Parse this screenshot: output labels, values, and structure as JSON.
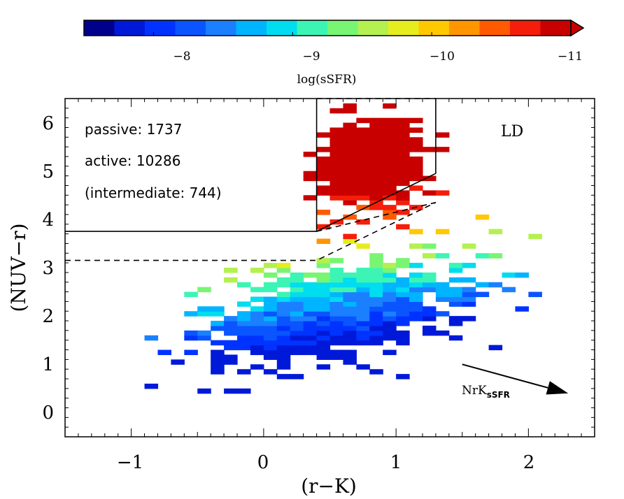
{
  "chart_data": {
    "type": "heatmap",
    "xlabel": "(r−K)",
    "ylabel": "(NUV−r)",
    "xlim": [
      -1.5,
      2.5
    ],
    "ylim": [
      -0.5,
      6.5
    ],
    "xticks": [
      -1,
      0,
      1,
      2
    ],
    "xtick_labels": [
      "−1",
      "0",
      "1",
      "2"
    ],
    "yticks": [
      0,
      1,
      2,
      3,
      4,
      5,
      6
    ],
    "ytick_labels": [
      "0",
      "1",
      "2",
      "3",
      "4",
      "5",
      "6"
    ],
    "colorbar": {
      "label": "log(sSFR)",
      "range": [
        -7.5,
        -11.0
      ],
      "ticks": [
        -8,
        -9,
        -10,
        -11
      ],
      "tick_labels": [
        "−8",
        "−9",
        "−10",
        "−11"
      ],
      "colors": [
        "#00008c",
        "#0019d9",
        "#0033ff",
        "#0a55ff",
        "#1a80ff",
        "#00b4ff",
        "#00dcf0",
        "#3cf5b4",
        "#78f573",
        "#b4f050",
        "#e6ed1e",
        "#ffc800",
        "#ff9600",
        "#ff5a00",
        "#f51e0a",
        "#c80000"
      ],
      "extend": "max"
    },
    "annotations": {
      "passive": "passive:  1737",
      "active": "active:  10286",
      "intermediate": "(intermediate:  744)",
      "region": "LD",
      "vector": "NrK",
      "vector_sub": "sSFR"
    },
    "boundary_lines": [
      {
        "style": "solid",
        "points": [
          [
            -1.5,
            3.75
          ],
          [
            0.4,
            3.75
          ],
          [
            1.3,
            4.95
          ]
        ]
      },
      {
        "style": "solid",
        "points": [
          [
            0.4,
            3.75
          ],
          [
            0.4,
            6.5
          ]
        ]
      },
      {
        "style": "solid",
        "points": [
          [
            1.3,
            4.95
          ],
          [
            1.3,
            6.5
          ]
        ]
      },
      {
        "style": "dashed",
        "points": [
          [
            -1.5,
            3.15
          ],
          [
            0.4,
            3.15
          ],
          [
            1.3,
            4.35
          ]
        ]
      },
      {
        "style": "dashed",
        "points": [
          [
            0.4,
            3.75
          ],
          [
            1.3,
            4.35
          ]
        ]
      },
      {
        "style": "dashed",
        "points": [
          [
            0.4,
            6.5
          ],
          [
            1.3,
            6.5
          ]
        ]
      }
    ],
    "vector_arrow": {
      "from": [
        1.5,
        1.0
      ],
      "to": [
        2.3,
        0.4
      ]
    },
    "grid": false
  }
}
